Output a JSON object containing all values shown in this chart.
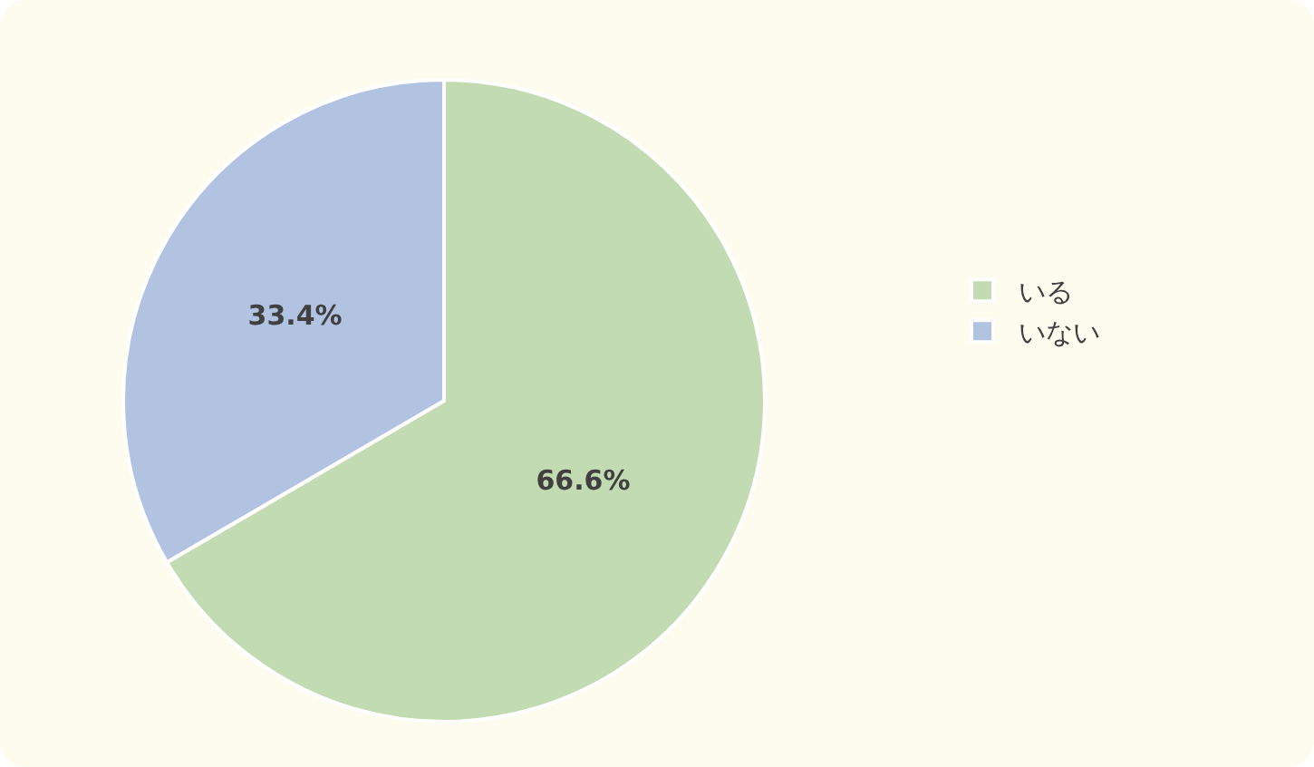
{
  "chart_data": {
    "type": "pie",
    "categories": [
      "いる",
      "いない"
    ],
    "values": [
      66.6,
      33.4
    ],
    "value_labels": [
      "66.6%",
      "33.4%"
    ],
    "colors": [
      "#c3dbb2",
      "#b2c3e2"
    ],
    "legend": "right"
  }
}
